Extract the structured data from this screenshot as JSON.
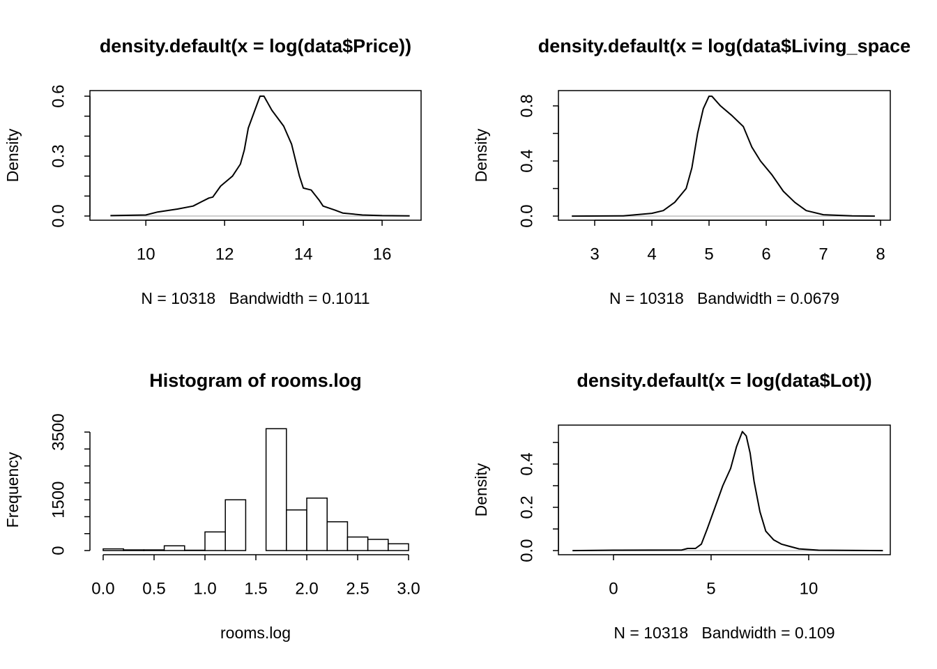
{
  "chart_data": [
    {
      "type": "density",
      "title": "density.default(x = log(data$Price))",
      "xlabel": "N = 10318   Bandwidth = 0.1011",
      "ylabel": "Density",
      "x": [
        9.1,
        10.0,
        10.3,
        10.8,
        11.2,
        11.4,
        11.6,
        11.7,
        11.9,
        12.2,
        12.4,
        12.5,
        12.6,
        12.75,
        12.9,
        13.0,
        13.2,
        13.5,
        13.7,
        13.9,
        14.0,
        14.2,
        14.4,
        14.5,
        14.8,
        15.0,
        15.5,
        16.0,
        16.7
      ],
      "values": [
        0.002,
        0.005,
        0.02,
        0.035,
        0.05,
        0.07,
        0.09,
        0.095,
        0.15,
        0.2,
        0.26,
        0.33,
        0.44,
        0.52,
        0.6,
        0.6,
        0.53,
        0.45,
        0.36,
        0.2,
        0.14,
        0.13,
        0.08,
        0.05,
        0.03,
        0.015,
        0.005,
        0.002,
        0.001
      ],
      "color": "#000000",
      "zero_line": true,
      "box": true,
      "xlim": [
        8.58,
        16.99
      ],
      "ylim": [
        -0.021,
        0.628
      ],
      "xticks": [
        10,
        12,
        14,
        16
      ],
      "yticks": [
        {
          "value": 0,
          "label": "0.0"
        },
        {
          "value": 0.3,
          "label": "0.3"
        },
        {
          "value": 0.6,
          "label": "0.6"
        }
      ],
      "minor_yticks": [
        0.1,
        0.2,
        0.4,
        0.5
      ]
    },
    {
      "type": "density",
      "title": "density.default(x = log(data$Living_space",
      "xlabel": "N = 10318   Bandwidth = 0.0679",
      "ylabel": "Density",
      "x": [
        2.6,
        3.5,
        4.0,
        4.2,
        4.4,
        4.6,
        4.7,
        4.8,
        4.9,
        5.0,
        5.05,
        5.2,
        5.4,
        5.6,
        5.75,
        5.9,
        6.1,
        6.3,
        6.5,
        6.7,
        7.0,
        7.5,
        7.9
      ],
      "values": [
        0.0,
        0.002,
        0.02,
        0.04,
        0.1,
        0.2,
        0.35,
        0.6,
        0.78,
        0.87,
        0.87,
        0.8,
        0.73,
        0.65,
        0.5,
        0.4,
        0.3,
        0.18,
        0.1,
        0.04,
        0.01,
        0.002,
        0.0
      ],
      "color": "#000000",
      "zero_line": true,
      "box": true,
      "xlim": [
        2.366,
        8.17
      ],
      "ylim": [
        -0.03,
        0.911
      ],
      "xticks": [
        3,
        4,
        5,
        6,
        7,
        8
      ],
      "yticks": [
        {
          "value": 0,
          "label": "0.0"
        },
        {
          "value": 0.4,
          "label": "0.4"
        },
        {
          "value": 0.8,
          "label": "0.8"
        }
      ],
      "minor_yticks": [
        0.2,
        0.6
      ]
    },
    {
      "type": "histogram",
      "title": "Histogram of rooms.log",
      "xlabel": "rooms.log",
      "ylabel": "Frequency",
      "bins": [
        0,
        0.2,
        0.4,
        0.6,
        0.8,
        1.0,
        1.2,
        1.4,
        1.6,
        1.8,
        2.0,
        2.2,
        2.4,
        2.6,
        2.8,
        3.0
      ],
      "values": [
        50,
        20,
        20,
        140,
        10,
        550,
        1500,
        0,
        3600,
        1200,
        1550,
        850,
        400,
        330,
        200
      ],
      "color": "#000000",
      "fill": "#ffffff",
      "box": false,
      "xlim": [
        -0.13,
        3.123
      ],
      "ylim": [
        -123,
        3706
      ],
      "xticks": [
        {
          "value": 0,
          "label": "0.0"
        },
        {
          "value": 0.5,
          "label": "0.5"
        },
        {
          "value": 1,
          "label": "1.0"
        },
        {
          "value": 1.5,
          "label": "1.5"
        },
        {
          "value": 2,
          "label": "2.0"
        },
        {
          "value": 2.5,
          "label": "2.5"
        },
        {
          "value": 3,
          "label": "3.0"
        }
      ],
      "yticks": [
        0,
        1500,
        3500
      ],
      "minor_yticks": [
        500,
        1000,
        2000,
        2500,
        3000
      ]
    },
    {
      "type": "density",
      "title": "density.default(x = log(data$Lot))",
      "xlabel": "N = 10318   Bandwidth = 0.109",
      "ylabel": "Density",
      "x": [
        -2.1,
        0,
        3.5,
        3.8,
        4.2,
        4.5,
        4.8,
        5.2,
        5.6,
        6.0,
        6.3,
        6.6,
        6.8,
        7.0,
        7.2,
        7.5,
        7.8,
        8.2,
        8.6,
        9.0,
        9.5,
        10.5,
        13.8
      ],
      "values": [
        0,
        0.002,
        0.003,
        0.01,
        0.01,
        0.03,
        0.1,
        0.2,
        0.3,
        0.38,
        0.48,
        0.55,
        0.53,
        0.45,
        0.32,
        0.18,
        0.09,
        0.05,
        0.03,
        0.02,
        0.008,
        0.002,
        0
      ],
      "color": "#000000",
      "zero_line": true,
      "box": true,
      "xlim": [
        -2.82,
        14.18
      ],
      "ylim": [
        -0.019,
        0.58
      ],
      "xticks": [
        0,
        5,
        10
      ],
      "yticks": [
        {
          "value": 0,
          "label": "0.0"
        },
        {
          "value": 0.2,
          "label": "0.2"
        },
        {
          "value": 0.4,
          "label": "0.4"
        }
      ],
      "minor_yticks": [
        0.1,
        0.3,
        0.5
      ]
    }
  ]
}
